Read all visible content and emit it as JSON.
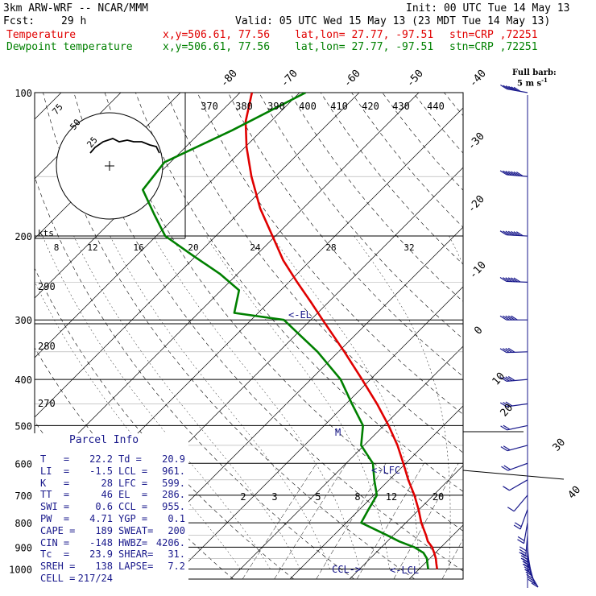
{
  "header": {
    "model": "3km ARW-WRF -- NCAR/MMM",
    "init": "Init: 00 UTC Tue 14 May 13",
    "fcst_label": "Fcst:",
    "fcst_value": "29 h",
    "valid": "Valid: 05 UTC Wed 15 May 13 (23 MDT Tue 14 May 13)",
    "temp_line": {
      "name": "Temperature",
      "xy": "x,y=506.61, 77.56",
      "latlon": "lat,lon= 27.77, -97.51",
      "stn": "stn=CRP ,72251"
    },
    "dew_line": {
      "name": "Dewpoint temperature",
      "xy": "x,y=506.61, 77.56",
      "latlon": "lat,lon= 27.77, -97.51",
      "stn": "stn=CRP ,72251"
    }
  },
  "barb_legend": {
    "title": "Full barb:",
    "value": "5 m s",
    "sup": "-1"
  },
  "hodograph": {
    "units": "kts",
    "ring_labels": [
      "75",
      "50",
      "25"
    ]
  },
  "annotations": {
    "el": "<-EL",
    "lfc": "<-LFC",
    "lcl": "<-LCL",
    "ccl": "CCL->",
    "m": "M"
  },
  "parcel_info": {
    "title": "Parcel Info",
    "rows": [
      {
        "l1": "T   =",
        "v1": "22.2",
        "l2": "Td =",
        "v2": "20.9"
      },
      {
        "l1": "LI  =",
        "v1": "-1.5",
        "l2": "LCL =",
        "v2": "961."
      },
      {
        "l1": "K   =",
        "v1": "28",
        "l2": "LFC =",
        "v2": "599."
      },
      {
        "l1": "TT  =",
        "v1": "46",
        "l2": "EL  =",
        "v2": "286."
      },
      {
        "l1": "SWI =",
        "v1": "0.6",
        "l2": "CCL =",
        "v2": "955."
      },
      {
        "l1": "PW  =",
        "v1": "4.71",
        "l2": "YGP =",
        "v2": "0.1"
      },
      {
        "l1": "CAPE =",
        "v1": "189",
        "l2": "SWEAT=",
        "v2": "200"
      },
      {
        "l1": "CIN =",
        "v1": "-148",
        "l2": "HWBZ=",
        "v2": "4206."
      },
      {
        "l1": "Tc  =",
        "v1": "23.9",
        "l2": "SHEAR=",
        "v2": "31."
      },
      {
        "l1": "SREH =",
        "v1": "138",
        "l2": "LAPSE=",
        "v2": "7.2"
      },
      {
        "l1": "CELL =",
        "v1": "217/24",
        "l2": "",
        "v2": ""
      }
    ]
  },
  "colors": {
    "temperature": "#e00000",
    "dewpoint": "#008000",
    "navy": "#1a1a8c",
    "grid": "#000000"
  },
  "chart_data": {
    "type": "line",
    "xaxis_scale": "skew-T temperature (C)",
    "yaxis_scale": "log pressure (hPa)",
    "pressure_labels": [
      100,
      200,
      300,
      400,
      500,
      600,
      700,
      800,
      900,
      1000
    ],
    "top_temperature_labels": [
      "-80",
      "-70",
      "-60",
      "-50",
      "-40"
    ],
    "right_temperature_labels": [
      "-30",
      "-20",
      "-10",
      "0",
      "10",
      "20",
      "30",
      "40"
    ],
    "theta_e_labels": [
      "370",
      "380",
      "390",
      "400",
      "410",
      "420",
      "430",
      "440"
    ],
    "theta_labels_left": [
      "290",
      "280",
      "270"
    ],
    "mixing_ratio_labels": [
      "2",
      "3",
      "5",
      "8",
      "12",
      "20"
    ],
    "hodo_speed_labels": [
      "8",
      "12",
      "16",
      "20",
      "24",
      "28",
      "32"
    ],
    "series": [
      {
        "name": "Temperature",
        "pressure": [
          1000,
          975,
          950,
          925,
          900,
          875,
          850,
          800,
          750,
          700,
          650,
          600,
          550,
          500,
          450,
          400,
          350,
          300,
          275,
          250,
          225,
          200,
          175,
          150,
          130,
          115,
          100
        ],
        "temp_c": [
          23,
          22,
          21,
          19.8,
          18.5,
          16.8,
          15.5,
          12.6,
          9.9,
          6.8,
          3.2,
          -0.4,
          -4.4,
          -9.2,
          -14.8,
          -21.4,
          -29,
          -38,
          -43,
          -48.6,
          -54.6,
          -60.5,
          -67.2,
          -74,
          -79.8,
          -84.2,
          -88
        ]
      },
      {
        "name": "Dewpoint temperature",
        "pressure": [
          1000,
          975,
          950,
          925,
          900,
          875,
          850,
          800,
          750,
          700,
          650,
          600,
          550,
          500,
          450,
          400,
          350,
          300,
          290,
          260,
          240,
          220,
          200,
          180,
          160,
          140,
          120,
          100
        ],
        "temp_c": [
          21.5,
          20.5,
          19.5,
          18,
          15.5,
          12,
          9,
          2.5,
          1.5,
          0.5,
          -2.5,
          -5.5,
          -10.5,
          -13.5,
          -19,
          -25,
          -33.5,
          -44.5,
          -54,
          -57,
          -63,
          -70.5,
          -78.5,
          -84,
          -90,
          -91,
          -85,
          -79
        ]
      }
    ],
    "wind_barbs_kt": [
      {
        "p": 1000,
        "spd": 8,
        "dir": 150
      },
      {
        "p": 975,
        "spd": 12,
        "dir": 160
      },
      {
        "p": 950,
        "spd": 16,
        "dir": 165
      },
      {
        "p": 925,
        "spd": 18,
        "dir": 170
      },
      {
        "p": 900,
        "spd": 18,
        "dir": 175
      },
      {
        "p": 875,
        "spd": 16,
        "dir": 180
      },
      {
        "p": 850,
        "spd": 14,
        "dir": 185
      },
      {
        "p": 800,
        "spd": 10,
        "dir": 190
      },
      {
        "p": 750,
        "spd": 8,
        "dir": 200
      },
      {
        "p": 700,
        "spd": 6,
        "dir": 220
      },
      {
        "p": 650,
        "spd": 6,
        "dir": 240
      },
      {
        "p": 600,
        "spd": 8,
        "dir": 250
      },
      {
        "p": 550,
        "spd": 10,
        "dir": 255
      },
      {
        "p": 500,
        "spd": 12,
        "dir": 258
      },
      {
        "p": 450,
        "spd": 14,
        "dir": 262
      },
      {
        "p": 400,
        "spd": 18,
        "dir": 265
      },
      {
        "p": 350,
        "spd": 22,
        "dir": 268
      },
      {
        "p": 300,
        "spd": 26,
        "dir": 270
      },
      {
        "p": 250,
        "spd": 30,
        "dir": 272
      },
      {
        "p": 200,
        "spd": 34,
        "dir": 273
      },
      {
        "p": 150,
        "spd": 36,
        "dir": 275
      },
      {
        "p": 100,
        "spd": 30,
        "dir": 280
      }
    ]
  }
}
